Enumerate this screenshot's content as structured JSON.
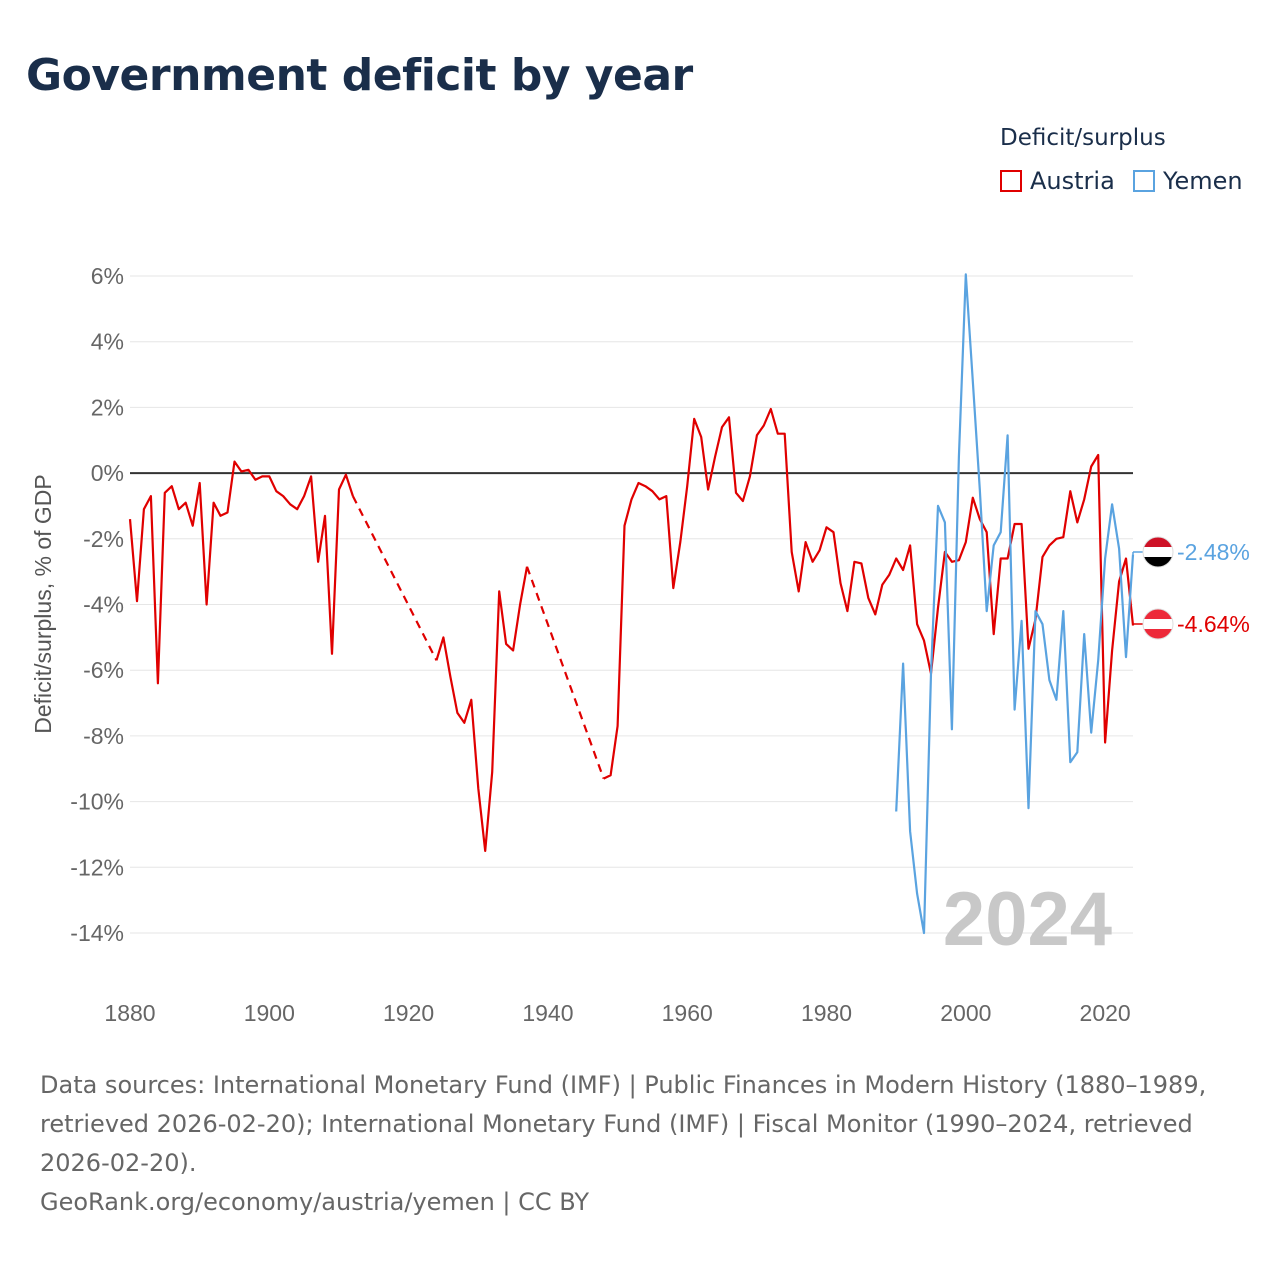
{
  "title": "Government deficit by year",
  "legend": {
    "title": "Deficit/surplus",
    "items": [
      {
        "name": "Austria",
        "color": "#e00000"
      },
      {
        "name": "Yemen",
        "color": "#5aa3e0"
      }
    ]
  },
  "year_watermark": "2024",
  "end_labels": {
    "yemen": "-2.48%",
    "austria": "-4.64%"
  },
  "footer": {
    "sources": "Data sources: International Monetary Fund (IMF) | Public Finances in Modern History (1880–1989, retrieved 2026-02-20); International Monetary Fund (IMF) | Fiscal Monitor (1990–2024, retrieved 2026-02-20).",
    "credit": "GeoRank.org/economy/austria/yemen | CC BY"
  },
  "chart_data": {
    "type": "line",
    "title": "Government deficit by year",
    "xlabel": "",
    "ylabel": "Deficit/surplus, % of GDP",
    "xlim": [
      1880,
      2024
    ],
    "ylim": [
      -14,
      6
    ],
    "x_ticks": [
      1880,
      1900,
      1920,
      1940,
      1960,
      1980,
      2000,
      2020
    ],
    "y_ticks": [
      6,
      4,
      2,
      0,
      -2,
      -4,
      -6,
      -8,
      -10,
      -12,
      -14
    ],
    "y_tick_labels": [
      "6%",
      "4%",
      "2%",
      "0%",
      "-2%",
      "-4%",
      "-6%",
      "-8%",
      "-10%",
      "-12%",
      "-14%"
    ],
    "series": [
      {
        "name": "Austria",
        "color": "#e00000",
        "points": [
          [
            1880,
            -1.4
          ],
          [
            1881,
            -3.9
          ],
          [
            1882,
            -1.1
          ],
          [
            1883,
            -0.7
          ],
          [
            1884,
            -6.4
          ],
          [
            1885,
            -0.6
          ],
          [
            1886,
            -0.4
          ],
          [
            1887,
            -1.1
          ],
          [
            1888,
            -0.9
          ],
          [
            1889,
            -1.6
          ],
          [
            1890,
            -0.3
          ],
          [
            1891,
            -4.0
          ],
          [
            1892,
            -0.9
          ],
          [
            1893,
            -1.3
          ],
          [
            1894,
            -1.2
          ],
          [
            1895,
            0.35
          ],
          [
            1896,
            0.05
          ],
          [
            1897,
            0.1
          ],
          [
            1898,
            -0.2
          ],
          [
            1899,
            -0.1
          ],
          [
            1900,
            -0.1
          ],
          [
            1901,
            -0.55
          ],
          [
            1902,
            -0.7
          ],
          [
            1903,
            -0.95
          ],
          [
            1904,
            -1.1
          ],
          [
            1905,
            -0.7
          ],
          [
            1906,
            -0.1
          ],
          [
            1907,
            -2.7
          ],
          [
            1908,
            -1.3
          ],
          [
            1909,
            -5.5
          ],
          [
            1910,
            -0.5
          ],
          [
            1911,
            -0.05
          ],
          [
            1912,
            -0.7
          ],
          [
            1924,
            -5.7
          ],
          [
            1925,
            -5.0
          ],
          [
            1926,
            -6.2
          ],
          [
            1927,
            -7.3
          ],
          [
            1928,
            -7.6
          ],
          [
            1929,
            -6.9
          ],
          [
            1930,
            -9.6
          ],
          [
            1931,
            -11.5
          ],
          [
            1932,
            -9.1
          ],
          [
            1933,
            -3.6
          ],
          [
            1934,
            -5.2
          ],
          [
            1935,
            -5.4
          ],
          [
            1936,
            -4.0
          ],
          [
            1937,
            -2.85
          ],
          [
            1948,
            -9.3
          ],
          [
            1949,
            -9.2
          ],
          [
            1950,
            -7.7
          ],
          [
            1951,
            -1.6
          ],
          [
            1952,
            -0.8
          ],
          [
            1953,
            -0.3
          ],
          [
            1954,
            -0.4
          ],
          [
            1955,
            -0.55
          ],
          [
            1956,
            -0.8
          ],
          [
            1957,
            -0.7
          ],
          [
            1958,
            -3.5
          ],
          [
            1959,
            -2.1
          ],
          [
            1960,
            -0.4
          ],
          [
            1961,
            1.65
          ],
          [
            1962,
            1.1
          ],
          [
            1963,
            -0.5
          ],
          [
            1964,
            0.5
          ],
          [
            1965,
            1.4
          ],
          [
            1966,
            1.7
          ],
          [
            1967,
            -0.6
          ],
          [
            1968,
            -0.85
          ],
          [
            1969,
            -0.1
          ],
          [
            1970,
            1.15
          ],
          [
            1971,
            1.45
          ],
          [
            1972,
            1.95
          ],
          [
            1973,
            1.2
          ],
          [
            1974,
            1.2
          ],
          [
            1975,
            -2.4
          ],
          [
            1976,
            -3.6
          ],
          [
            1977,
            -2.1
          ],
          [
            1978,
            -2.7
          ],
          [
            1979,
            -2.35
          ],
          [
            1980,
            -1.65
          ],
          [
            1981,
            -1.8
          ],
          [
            1982,
            -3.35
          ],
          [
            1983,
            -4.2
          ],
          [
            1984,
            -2.7
          ],
          [
            1985,
            -2.75
          ],
          [
            1986,
            -3.8
          ],
          [
            1987,
            -4.3
          ],
          [
            1988,
            -3.4
          ],
          [
            1989,
            -3.1
          ],
          [
            1990,
            -2.6
          ],
          [
            1991,
            -2.95
          ],
          [
            1992,
            -2.2
          ],
          [
            1993,
            -4.6
          ],
          [
            1994,
            -5.1
          ],
          [
            1995,
            -6.1
          ],
          [
            1996,
            -4.1
          ],
          [
            1997,
            -2.4
          ],
          [
            1998,
            -2.7
          ],
          [
            1999,
            -2.65
          ],
          [
            2000,
            -2.1
          ],
          [
            2001,
            -0.75
          ],
          [
            2002,
            -1.4
          ],
          [
            2003,
            -1.8
          ],
          [
            2004,
            -4.9
          ],
          [
            2005,
            -2.6
          ],
          [
            2006,
            -2.6
          ],
          [
            2007,
            -1.55
          ],
          [
            2008,
            -1.55
          ],
          [
            2009,
            -5.35
          ],
          [
            2010,
            -4.45
          ],
          [
            2011,
            -2.55
          ],
          [
            2012,
            -2.2
          ],
          [
            2013,
            -2.0
          ],
          [
            2014,
            -1.95
          ],
          [
            2015,
            -0.55
          ],
          [
            2016,
            -1.5
          ],
          [
            2017,
            -0.8
          ],
          [
            2018,
            0.2
          ],
          [
            2019,
            0.55
          ],
          [
            2020,
            -8.2
          ],
          [
            2021,
            -5.4
          ],
          [
            2022,
            -3.3
          ],
          [
            2023,
            -2.6
          ],
          [
            2024,
            -4.64
          ]
        ],
        "gaps": [
          [
            1912,
            1924
          ],
          [
            1937,
            1948
          ]
        ]
      },
      {
        "name": "Yemen",
        "color": "#5aa3e0",
        "points": [
          [
            1990,
            -10.3
          ],
          [
            1991,
            -5.8
          ],
          [
            1992,
            -10.9
          ],
          [
            1993,
            -12.8
          ],
          [
            1994,
            -14.0
          ],
          [
            1995,
            -6.1
          ],
          [
            1996,
            -1.0
          ],
          [
            1997,
            -1.5
          ],
          [
            1998,
            -7.8
          ],
          [
            1999,
            0.5
          ],
          [
            2000,
            6.05
          ],
          [
            2001,
            2.8
          ],
          [
            2002,
            -0.5
          ],
          [
            2003,
            -4.2
          ],
          [
            2004,
            -2.2
          ],
          [
            2005,
            -1.8
          ],
          [
            2006,
            1.15
          ],
          [
            2007,
            -7.2
          ],
          [
            2008,
            -4.5
          ],
          [
            2009,
            -10.2
          ],
          [
            2010,
            -4.2
          ],
          [
            2011,
            -4.6
          ],
          [
            2012,
            -6.3
          ],
          [
            2013,
            -6.9
          ],
          [
            2014,
            -4.2
          ],
          [
            2015,
            -8.8
          ],
          [
            2016,
            -8.5
          ],
          [
            2017,
            -4.9
          ],
          [
            2018,
            -7.9
          ],
          [
            2019,
            -5.7
          ],
          [
            2020,
            -2.6
          ],
          [
            2021,
            -0.95
          ],
          [
            2022,
            -2.3
          ],
          [
            2023,
            -5.6
          ],
          [
            2024,
            -2.48
          ]
        ],
        "gaps": []
      }
    ]
  }
}
